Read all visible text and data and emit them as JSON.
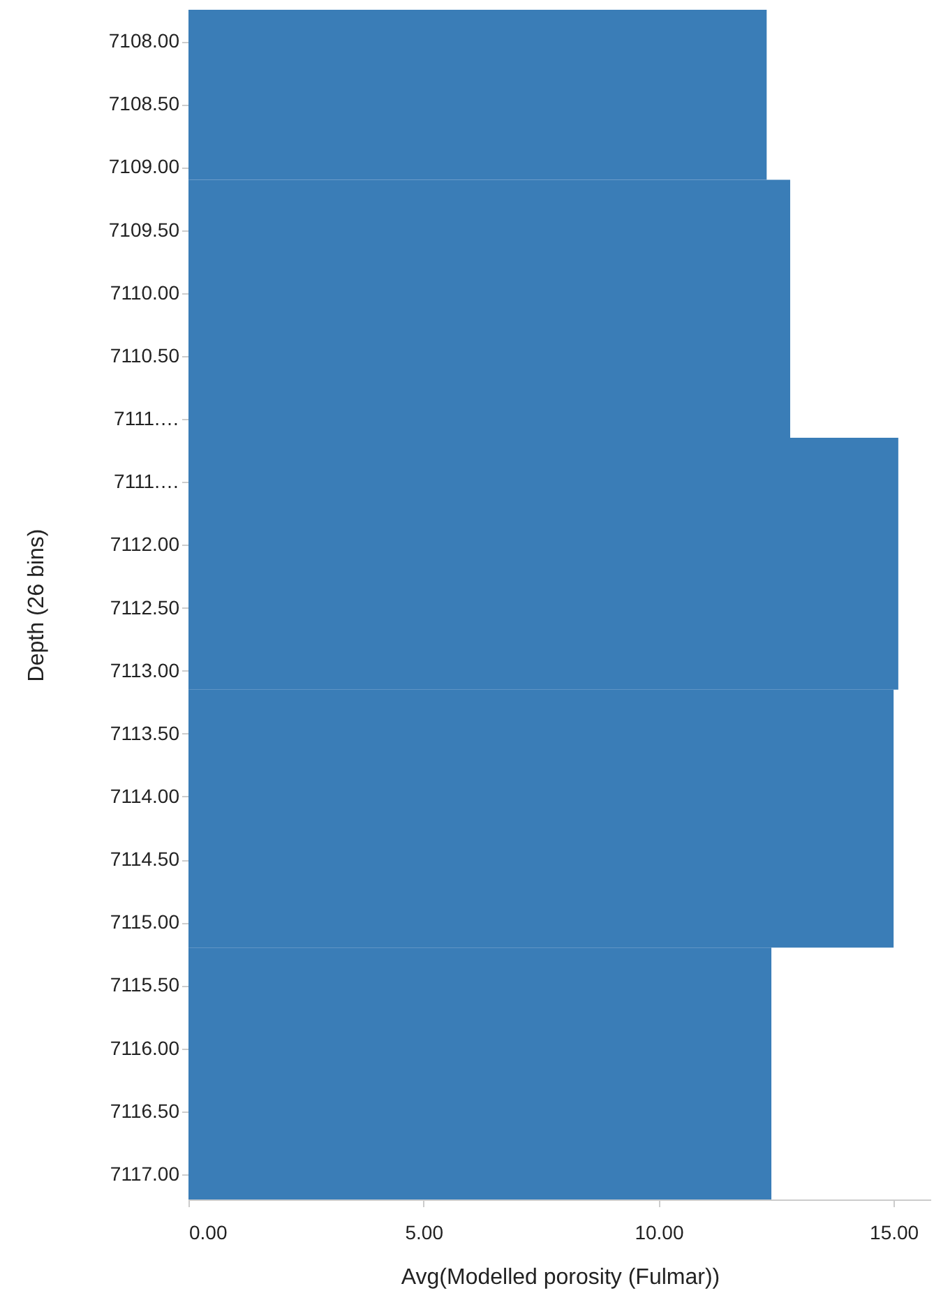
{
  "chart_data": {
    "type": "histogram",
    "orientation": "horizontal",
    "xlabel": "Avg(Modelled porosity (Fulmar))",
    "ylabel": "Depth (26 bins)",
    "bins": [
      7107.75,
      7109.1,
      7111.15,
      7113.15,
      7115.2,
      7117.2
    ],
    "values": [
      12.3,
      12.8,
      15.1,
      15.0,
      12.4
    ],
    "color": "#3a7db7",
    "xlim": [
      0,
      15.8
    ],
    "xticks": [
      {
        "value": 0,
        "label": "0.00"
      },
      {
        "value": 5,
        "label": "5.00"
      },
      {
        "value": 10,
        "label": "10.00"
      },
      {
        "value": 15,
        "label": "15.00"
      }
    ],
    "ylim": [
      7117.2,
      7107.75
    ],
    "yticks": [
      {
        "value": 7108,
        "label": "7108.00"
      },
      {
        "value": 7108.5,
        "label": "7108.50"
      },
      {
        "value": 7109,
        "label": "7109.00"
      },
      {
        "value": 7109.5,
        "label": "7109.50"
      },
      {
        "value": 7110,
        "label": "7110.00"
      },
      {
        "value": 7110.5,
        "label": "7110.50"
      },
      {
        "value": 7111,
        "label": "7111.…"
      },
      {
        "value": 7111.5,
        "label": "7111.…"
      },
      {
        "value": 7112,
        "label": "7112.00"
      },
      {
        "value": 7112.5,
        "label": "7112.50"
      },
      {
        "value": 7113,
        "label": "7113.00"
      },
      {
        "value": 7113.5,
        "label": "7113.50"
      },
      {
        "value": 7114,
        "label": "7114.00"
      },
      {
        "value": 7114.5,
        "label": "7114.50"
      },
      {
        "value": 7115,
        "label": "7115.00"
      },
      {
        "value": 7115.5,
        "label": "7115.50"
      },
      {
        "value": 7116,
        "label": "7116.00"
      },
      {
        "value": 7116.5,
        "label": "7116.50"
      },
      {
        "value": 7117,
        "label": "7117.00"
      }
    ],
    "grid": false
  }
}
